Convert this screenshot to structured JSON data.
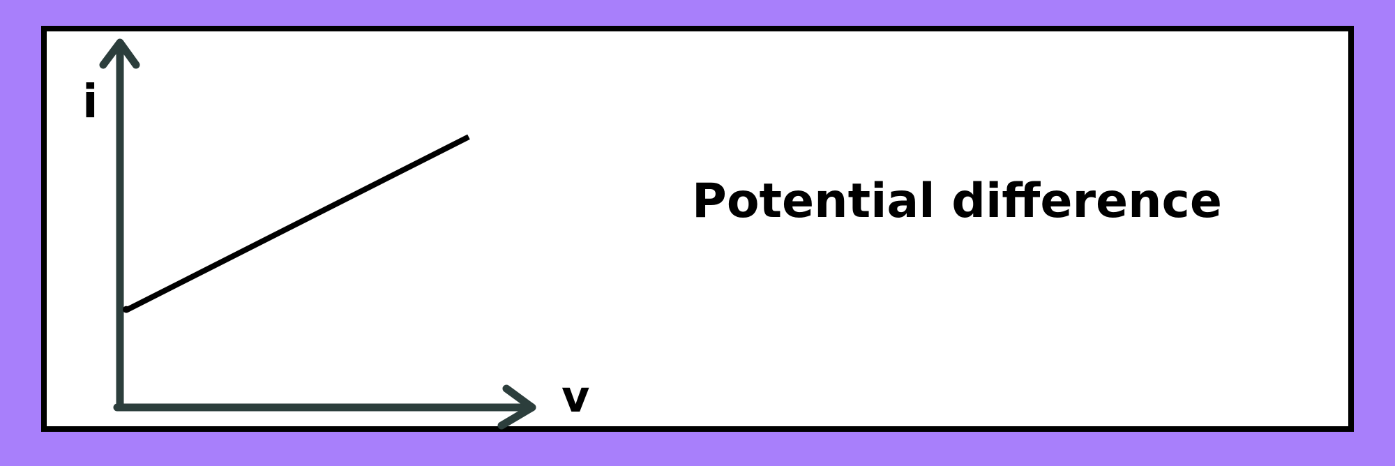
{
  "colors": {
    "background": "#a87ffb",
    "panel": "#ffffff",
    "border": "#000000",
    "axis": "#2c3e3c",
    "line": "#000000"
  },
  "diagram": {
    "y_axis_label": "i",
    "x_axis_label": "v",
    "caption": "Potential difference"
  },
  "chart_data": {
    "type": "line",
    "x_axis_label": "v",
    "y_axis_label": "i",
    "xlim": [
      0,
      1
    ],
    "ylim": [
      0,
      1
    ],
    "series": [
      {
        "x": [
          0.0,
          0.909
        ],
        "y": [
          0.267,
          0.743
        ]
      }
    ]
  }
}
